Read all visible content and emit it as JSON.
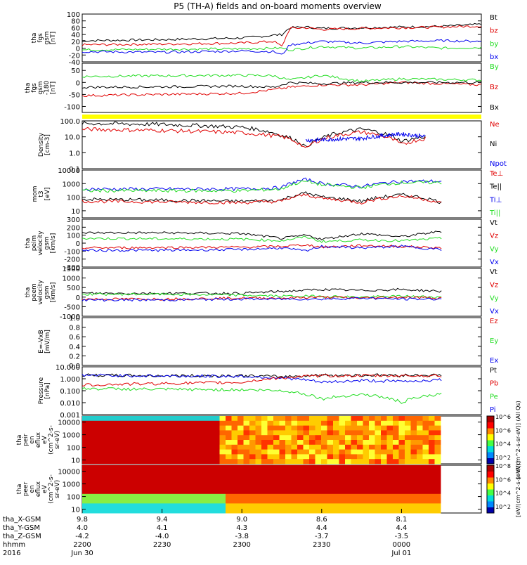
{
  "title": "P5 (TH-A) fields and on-board moments overview",
  "colors": {
    "black": "#000000",
    "red": "#e00000",
    "green": "#22dd22",
    "blue": "#0000ee",
    "yellow": "#ffff00",
    "spec_low": "#cc0000"
  },
  "chart_data": [
    {
      "type": "line",
      "name": "fgs-gsm",
      "ylabel_lines": [
        "tha",
        "fgs",
        "gsm",
        "[nT]"
      ],
      "ylim": [
        -40,
        100
      ],
      "ticks": [
        -40,
        -20,
        0,
        20,
        40,
        60,
        80,
        100
      ],
      "tick_labels": [
        "-40",
        "-20",
        "0",
        "20",
        "40",
        "60",
        "80",
        "100"
      ],
      "legend": [
        {
          "name": "Bt",
          "color": "#000000"
        },
        {
          "name": "bz",
          "color": "#e00000"
        },
        {
          "name": "by",
          "color": "#22dd22"
        },
        {
          "name": "bx",
          "color": "#0000ee"
        }
      ],
      "series": [
        {
          "name": "Bt",
          "color": "#000000",
          "x": [
            0,
            0.2,
            0.4,
            0.48,
            0.5,
            0.52,
            0.56,
            0.6,
            0.7,
            0.8,
            0.9,
            1.0
          ],
          "y": [
            22,
            25,
            30,
            38,
            40,
            60,
            62,
            58,
            60,
            62,
            64,
            70
          ]
        },
        {
          "name": "bz",
          "color": "#e00000",
          "x": [
            0,
            0.2,
            0.4,
            0.48,
            0.5,
            0.52,
            0.56,
            0.6,
            0.7,
            0.8,
            0.9,
            1.0
          ],
          "y": [
            10,
            12,
            15,
            20,
            5,
            58,
            60,
            55,
            58,
            60,
            62,
            65
          ]
        },
        {
          "name": "by",
          "color": "#22dd22",
          "x": [
            0,
            0.2,
            0.4,
            0.48,
            0.5,
            0.52,
            0.56,
            0.6,
            0.7,
            0.8,
            0.9,
            1.0
          ],
          "y": [
            -5,
            -3,
            -2,
            0,
            0,
            -5,
            0,
            5,
            0,
            5,
            0,
            2
          ]
        },
        {
          "name": "bx",
          "color": "#0000ee",
          "x": [
            0,
            0.2,
            0.4,
            0.48,
            0.5,
            0.52,
            0.56,
            0.6,
            0.7,
            0.8,
            0.9,
            1.0
          ],
          "y": [
            -10,
            -12,
            -8,
            -10,
            -20,
            10,
            15,
            20,
            15,
            20,
            22,
            20
          ]
        }
      ]
    },
    {
      "type": "line",
      "name": "fgs-gse",
      "ylabel_lines": [
        "tha",
        "fgs",
        "gsm",
        "-180",
        "[nT]"
      ],
      "ylim": [
        -125,
        80
      ],
      "ticks": [
        -100,
        -50,
        0,
        50
      ],
      "tick_labels": [
        "-100",
        "-50",
        "0",
        "50"
      ],
      "legend": [
        {
          "name": "By",
          "color": "#22dd22"
        },
        {
          "name": "Bz",
          "color": "#e00000"
        },
        {
          "name": "Bx",
          "color": "#000000"
        }
      ],
      "series": [
        {
          "name": "By",
          "color": "#22dd22",
          "x": [
            0,
            0.2,
            0.4,
            0.48,
            0.52,
            0.6,
            0.7,
            0.8,
            1.0
          ],
          "y": [
            25,
            28,
            30,
            28,
            10,
            30,
            5,
            15,
            10
          ]
        },
        {
          "name": "Bz",
          "color": "#e00000",
          "x": [
            0,
            0.2,
            0.4,
            0.48,
            0.52,
            0.6,
            0.7,
            0.8,
            1.0
          ],
          "y": [
            -55,
            -50,
            -45,
            -30,
            -20,
            -10,
            -10,
            0,
            -10
          ]
        },
        {
          "name": "Bx",
          "color": "#000000",
          "x": [
            0,
            0.2,
            0.4,
            0.48,
            0.52,
            0.6,
            0.7,
            0.8,
            1.0
          ],
          "y": [
            -20,
            -18,
            -15,
            -20,
            0,
            -5,
            0,
            0,
            0
          ]
        }
      ]
    },
    {
      "type": "line",
      "name": "density",
      "log": true,
      "ylabel_lines": [
        "Density",
        "[cm-3]"
      ],
      "ylim": [
        0.1,
        100
      ],
      "ticks": [
        0.1,
        1,
        10,
        100
      ],
      "tick_labels": [
        "0.1",
        "1.0",
        "10.0",
        "100.0"
      ],
      "legend": [
        {
          "name": "Ne",
          "color": "#e00000"
        },
        {
          "name": "Ni",
          "color": "#000000"
        },
        {
          "name": "Npot",
          "color": "#0000ee"
        }
      ],
      "series": [
        {
          "name": "Ni",
          "color": "#000000",
          "x": [
            0,
            0.2,
            0.4,
            0.5,
            0.56,
            0.6,
            0.7,
            0.8,
            0.86
          ],
          "y": [
            70,
            60,
            40,
            12,
            2,
            8,
            30,
            5,
            10
          ]
        },
        {
          "name": "Ne",
          "color": "#e00000",
          "x": [
            0,
            0.2,
            0.4,
            0.5,
            0.56,
            0.6,
            0.7,
            0.8,
            0.86
          ],
          "y": [
            30,
            25,
            18,
            10,
            1.5,
            7,
            20,
            3,
            8
          ]
        },
        {
          "name": "Npot",
          "color": "#0000ee",
          "x": [
            0.56,
            0.7,
            0.8,
            0.86
          ],
          "y": [
            6,
            8,
            15,
            10
          ]
        }
      ]
    },
    {
      "type": "line",
      "name": "temperature",
      "log": true,
      "ylabel_lines": [
        "mom",
        "t3",
        "[eV]"
      ],
      "ylim": [
        3,
        10000
      ],
      "ticks": [
        10,
        100,
        1000,
        10000
      ],
      "tick_labels": [
        "10",
        "100",
        "1000",
        "10000"
      ],
      "legend": [
        {
          "name": "Te⊥",
          "color": "#e00000"
        },
        {
          "name": "Te||",
          "color": "#000000"
        },
        {
          "name": "Ti⊥",
          "color": "#0000ee"
        },
        {
          "name": "Ti||",
          "color": "#22dd22"
        }
      ],
      "series": [
        {
          "name": "Ti⊥",
          "color": "#0000ee",
          "x": [
            0,
            0.2,
            0.4,
            0.5,
            0.56,
            0.6,
            0.7,
            0.8,
            0.9
          ],
          "y": [
            400,
            400,
            400,
            500,
            2000,
            1000,
            600,
            1500,
            1500
          ]
        },
        {
          "name": "Ti||",
          "color": "#22dd22",
          "x": [
            0,
            0.2,
            0.4,
            0.5,
            0.56,
            0.6,
            0.7,
            0.8,
            0.9
          ],
          "y": [
            300,
            300,
            300,
            400,
            1500,
            800,
            500,
            1200,
            1200
          ]
        },
        {
          "name": "Te||",
          "color": "#000000",
          "x": [
            0,
            0.2,
            0.4,
            0.5,
            0.56,
            0.6,
            0.7,
            0.8,
            0.9
          ],
          "y": [
            70,
            60,
            50,
            60,
            200,
            100,
            50,
            150,
            40
          ]
        },
        {
          "name": "Te⊥",
          "color": "#e00000",
          "x": [
            0,
            0.2,
            0.4,
            0.5,
            0.56,
            0.6,
            0.7,
            0.8,
            0.9
          ],
          "y": [
            50,
            45,
            40,
            50,
            150,
            80,
            40,
            120,
            35
          ]
        }
      ]
    },
    {
      "type": "line",
      "name": "peim-velocity",
      "ylabel_lines": [
        "tha",
        "peim",
        "velocity",
        "gsm",
        "[km/s]"
      ],
      "ylim": [
        -300,
        300
      ],
      "ticks": [
        -300,
        -200,
        -100,
        0,
        100,
        200,
        300
      ],
      "tick_labels": [
        "-300",
        "-200",
        "-100",
        "0",
        "100",
        "200",
        "300"
      ],
      "legend": [
        {
          "name": "Vt",
          "color": "#000000"
        },
        {
          "name": "Vz",
          "color": "#e00000"
        },
        {
          "name": "Vy",
          "color": "#22dd22"
        },
        {
          "name": "Vx",
          "color": "#0000ee"
        }
      ],
      "series": [
        {
          "name": "Vt",
          "color": "#000000",
          "x": [
            0,
            0.2,
            0.4,
            0.5,
            0.56,
            0.6,
            0.7,
            0.8,
            0.9
          ],
          "y": [
            130,
            130,
            120,
            60,
            100,
            50,
            120,
            80,
            150
          ]
        },
        {
          "name": "Vy",
          "color": "#22dd22",
          "x": [
            0,
            0.2,
            0.4,
            0.5,
            0.56,
            0.6,
            0.7,
            0.8,
            0.9
          ],
          "y": [
            60,
            55,
            50,
            30,
            80,
            20,
            40,
            30,
            60
          ]
        },
        {
          "name": "Vz",
          "color": "#e00000",
          "x": [
            0,
            0.2,
            0.4,
            0.5,
            0.56,
            0.6,
            0.7,
            0.8,
            0.9
          ],
          "y": [
            -60,
            -55,
            -50,
            -40,
            -20,
            -50,
            -30,
            -40,
            -60
          ]
        },
        {
          "name": "Vx",
          "color": "#0000ee",
          "x": [
            0,
            0.2,
            0.4,
            0.5,
            0.56,
            0.6,
            0.7,
            0.8,
            0.9
          ],
          "y": [
            -90,
            -90,
            -80,
            -60,
            -100,
            -40,
            -60,
            -40,
            -80
          ]
        }
      ]
    },
    {
      "type": "line",
      "name": "peem-velocity",
      "ylabel_lines": [
        "tha",
        "peem",
        "velocity",
        "gsm",
        "[km/s]"
      ],
      "ylim": [
        -1000,
        1500
      ],
      "ticks": [
        -1000,
        -500,
        0,
        500,
        1000,
        1500
      ],
      "tick_labels": [
        "-1000",
        "-500",
        "0",
        "500",
        "1000",
        "1500"
      ],
      "legend": [
        {
          "name": "Vt",
          "color": "#000000"
        },
        {
          "name": "Vz",
          "color": "#e00000"
        },
        {
          "name": "Vy",
          "color": "#22dd22"
        },
        {
          "name": "Vx",
          "color": "#0000ee"
        }
      ],
      "series": [
        {
          "name": "Vt",
          "color": "#000000",
          "x": [
            0,
            0.2,
            0.4,
            0.5,
            0.6,
            0.7,
            0.8,
            0.9
          ],
          "y": [
            200,
            200,
            200,
            300,
            400,
            350,
            400,
            300
          ]
        },
        {
          "name": "Vy",
          "color": "#22dd22",
          "x": [
            0,
            0.2,
            0.4,
            0.5,
            0.6,
            0.7,
            0.8,
            0.9
          ],
          "y": [
            150,
            150,
            100,
            50,
            50,
            0,
            50,
            0
          ]
        },
        {
          "name": "Vz",
          "color": "#e00000",
          "x": [
            0,
            0.2,
            0.4,
            0.5,
            0.6,
            0.7,
            0.8,
            0.9
          ],
          "y": [
            -100,
            -100,
            -50,
            -50,
            0,
            -50,
            0,
            -50
          ]
        },
        {
          "name": "Vx",
          "color": "#0000ee",
          "x": [
            0,
            0.2,
            0.4,
            0.5,
            0.6,
            0.7,
            0.8,
            0.9
          ],
          "y": [
            -150,
            -150,
            -100,
            -100,
            -100,
            -50,
            -100,
            -100
          ]
        }
      ]
    },
    {
      "type": "line",
      "name": "efield",
      "ylabel_lines": [
        "E=-VxB",
        "[mV/m]"
      ],
      "ylim": [
        0,
        1
      ],
      "ticks": [
        0,
        0.2,
        0.4,
        0.6,
        0.8,
        1.0
      ],
      "tick_labels": [
        "0.0",
        "0.2",
        "0.4",
        "0.6",
        "0.8",
        "1.0"
      ],
      "legend": [
        {
          "name": "Ez",
          "color": "#e00000"
        },
        {
          "name": "Ey",
          "color": "#22dd22"
        },
        {
          "name": "Ex",
          "color": "#0000ee"
        }
      ],
      "series": []
    },
    {
      "type": "line",
      "name": "pressure",
      "log": true,
      "ylabel_lines": [
        "Pressure",
        "[nPa]"
      ],
      "ylim": [
        0.001,
        10
      ],
      "ticks": [
        0.001,
        0.01,
        0.1,
        1,
        10
      ],
      "tick_labels": [
        "0.001",
        "0.010",
        "0.100",
        "1.000",
        "10.000"
      ],
      "legend": [
        {
          "name": "Pt",
          "color": "#000000"
        },
        {
          "name": "Pb",
          "color": "#e00000"
        },
        {
          "name": "Pe",
          "color": "#22dd22"
        },
        {
          "name": "Pi",
          "color": "#0000ee"
        }
      ],
      "series": [
        {
          "name": "Pt",
          "color": "#000000",
          "x": [
            0,
            0.2,
            0.4,
            0.5,
            0.6,
            0.7,
            0.8,
            0.9
          ],
          "y": [
            2.0,
            1.8,
            1.8,
            1.5,
            2.0,
            2.0,
            2.0,
            2.0
          ]
        },
        {
          "name": "Pi",
          "color": "#0000ee",
          "x": [
            0,
            0.2,
            0.4,
            0.5,
            0.6,
            0.7,
            0.8,
            0.9
          ],
          "y": [
            2.0,
            1.7,
            1.6,
            1.2,
            0.5,
            0.7,
            0.6,
            0.8
          ]
        },
        {
          "name": "Pb",
          "color": "#e00000",
          "x": [
            0,
            0.2,
            0.4,
            0.5,
            0.6,
            0.7,
            0.8,
            0.9
          ],
          "y": [
            0.3,
            0.4,
            0.5,
            1.2,
            1.8,
            1.8,
            1.8,
            1.8
          ]
        },
        {
          "name": "Pe",
          "color": "#22dd22",
          "x": [
            0,
            0.2,
            0.4,
            0.5,
            0.6,
            0.7,
            0.8,
            0.9
          ],
          "y": [
            0.15,
            0.13,
            0.12,
            0.1,
            0.02,
            0.05,
            0.01,
            0.05
          ]
        }
      ]
    },
    {
      "type": "heatmap",
      "name": "peir-spectrogram",
      "log": true,
      "ylabel_lines": [
        "tha",
        "peir",
        "en",
        "eflux",
        "eV",
        "(cm^2-s-",
        "sr-eV)"
      ],
      "ylim": [
        5,
        30000
      ],
      "ticks": [
        10,
        100,
        1000,
        10000
      ],
      "tick_labels": [
        "10",
        "100",
        "1000",
        "10000"
      ],
      "zlabel": "[eV/(cm^2-s-sr-eV)] (All Qs)",
      "zticks": [
        "10^2",
        "10^4",
        "10^6",
        "10^6"
      ]
    },
    {
      "type": "heatmap",
      "name": "peer-spectrogram",
      "log": true,
      "ylabel_lines": [
        "tha",
        "peer",
        "en",
        "eflux",
        "eV",
        "(cm^2-s-",
        "sr-eV)"
      ],
      "ylim": [
        5,
        30000
      ],
      "ticks": [
        10,
        100,
        1000,
        10000
      ],
      "tick_labels": [
        "10",
        "100",
        "1000",
        "10000"
      ],
      "zlabel": "[eV/(cm^2-s-sr-eV)]",
      "zticks": [
        "10^2",
        "10^4",
        "10^6",
        "10^8"
      ]
    }
  ],
  "xaxis": {
    "row_labels": [
      "tha_X-GSM",
      "tha_Y-GSM",
      "tha_Z-GSM",
      "hhmm",
      "2016"
    ],
    "ticks": [
      {
        "x": 0,
        "vals": [
          "9.8",
          "4.0",
          "-4.2",
          "2200",
          "Jun 30"
        ]
      },
      {
        "x": 0.2,
        "vals": [
          "9.4",
          "4.1",
          "-4.0",
          "2230",
          ""
        ]
      },
      {
        "x": 0.4,
        "vals": [
          "9.0",
          "4.3",
          "-3.8",
          "2300",
          ""
        ]
      },
      {
        "x": 0.6,
        "vals": [
          "8.6",
          "4.4",
          "-3.7",
          "2330",
          ""
        ]
      },
      {
        "x": 0.8,
        "vals": [
          "8.1",
          "4.4",
          "-3.5",
          "0000",
          "Jul 01"
        ]
      }
    ]
  }
}
